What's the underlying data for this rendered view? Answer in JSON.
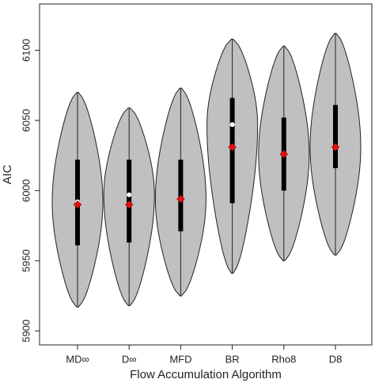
{
  "chart_data": {
    "type": "violin",
    "x_label": "Flow Accumulation Algorithm",
    "y_label": "AIC",
    "categories": [
      "MD∞",
      "D∞",
      "MFD",
      "BR",
      "Rho8",
      "D8"
    ],
    "min": [
      5917,
      5918,
      5925,
      5941,
      5950,
      5954
    ],
    "max": [
      6070,
      6059,
      6073,
      6108,
      6103,
      6112
    ],
    "q1": [
      5961,
      5963,
      5971,
      5991,
      6000,
      6016
    ],
    "q3": [
      6022,
      6022,
      6022,
      6066,
      6052,
      6061
    ],
    "median": [
      5992,
      5997,
      5994,
      6047,
      6026,
      6031
    ],
    "mean": [
      5990,
      5990,
      5994,
      6031,
      6026,
      6031
    ],
    "violin_color": "#c0c0c0",
    "median_color": "#ffffff",
    "mean_color": "#e01010",
    "ylim": [
      5890,
      6133
    ],
    "yticks": [
      5900,
      5950,
      6000,
      6050,
      6100
    ]
  }
}
